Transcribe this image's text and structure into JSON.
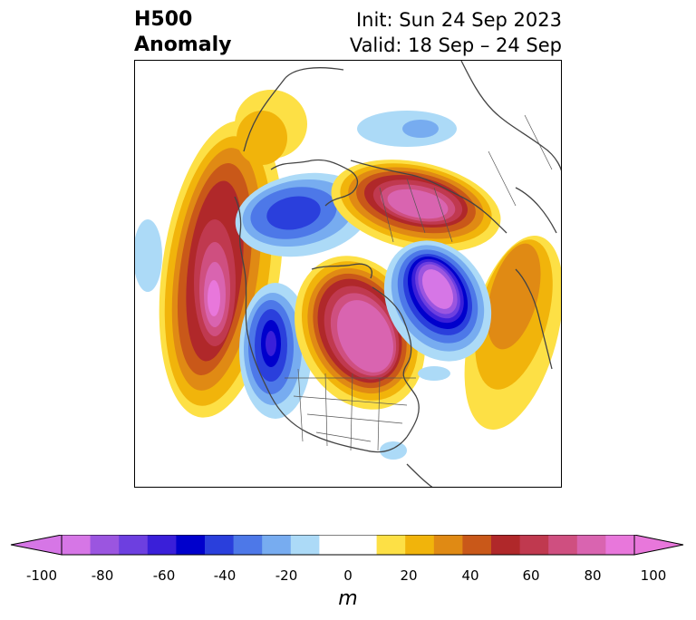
{
  "title": {
    "left_line1": "H500",
    "left_line2": "Anomaly",
    "right_line1": "Init: Sun 24 Sep 2023",
    "right_line2": "Valid: 18 Sep – 24 Sep"
  },
  "colorbar": {
    "label": "m",
    "ticks": [
      "-100",
      "-80",
      "-60",
      "-40",
      "-20",
      "0",
      "20",
      "40",
      "60",
      "80",
      "100"
    ],
    "range": [
      -100,
      100
    ],
    "bins": [
      {
        "from": -100,
        "to": -90,
        "color": "#d676e6"
      },
      {
        "from": -90,
        "to": -80,
        "color": "#9b55e0"
      },
      {
        "from": -80,
        "to": -70,
        "color": "#6d3fe0"
      },
      {
        "from": -70,
        "to": -60,
        "color": "#3a1fd9"
      },
      {
        "from": -60,
        "to": -50,
        "color": "#0000cc"
      },
      {
        "from": -50,
        "to": -40,
        "color": "#2a3fdc"
      },
      {
        "from": -40,
        "to": -30,
        "color": "#4d78e8"
      },
      {
        "from": -30,
        "to": -20,
        "color": "#77acf0"
      },
      {
        "from": -20,
        "to": -10,
        "color": "#acdaf7"
      },
      {
        "from": -10,
        "to": 10,
        "color": "#ffffff"
      },
      {
        "from": 10,
        "to": 20,
        "color": "#fde045"
      },
      {
        "from": 20,
        "to": 30,
        "color": "#f1b40b"
      },
      {
        "from": 30,
        "to": 40,
        "color": "#e08a14"
      },
      {
        "from": 40,
        "to": 50,
        "color": "#c95819"
      },
      {
        "from": 50,
        "to": 60,
        "color": "#b0282a"
      },
      {
        "from": 60,
        "to": 70,
        "color": "#c0394f"
      },
      {
        "from": 70,
        "to": 80,
        "color": "#cf4f80"
      },
      {
        "from": 80,
        "to": 90,
        "color": "#d964b0"
      },
      {
        "from": 90,
        "to": 100,
        "color": "#e877db"
      }
    ],
    "extend_low_color": "#d676e6",
    "extend_high_color": "#e877db"
  }
}
